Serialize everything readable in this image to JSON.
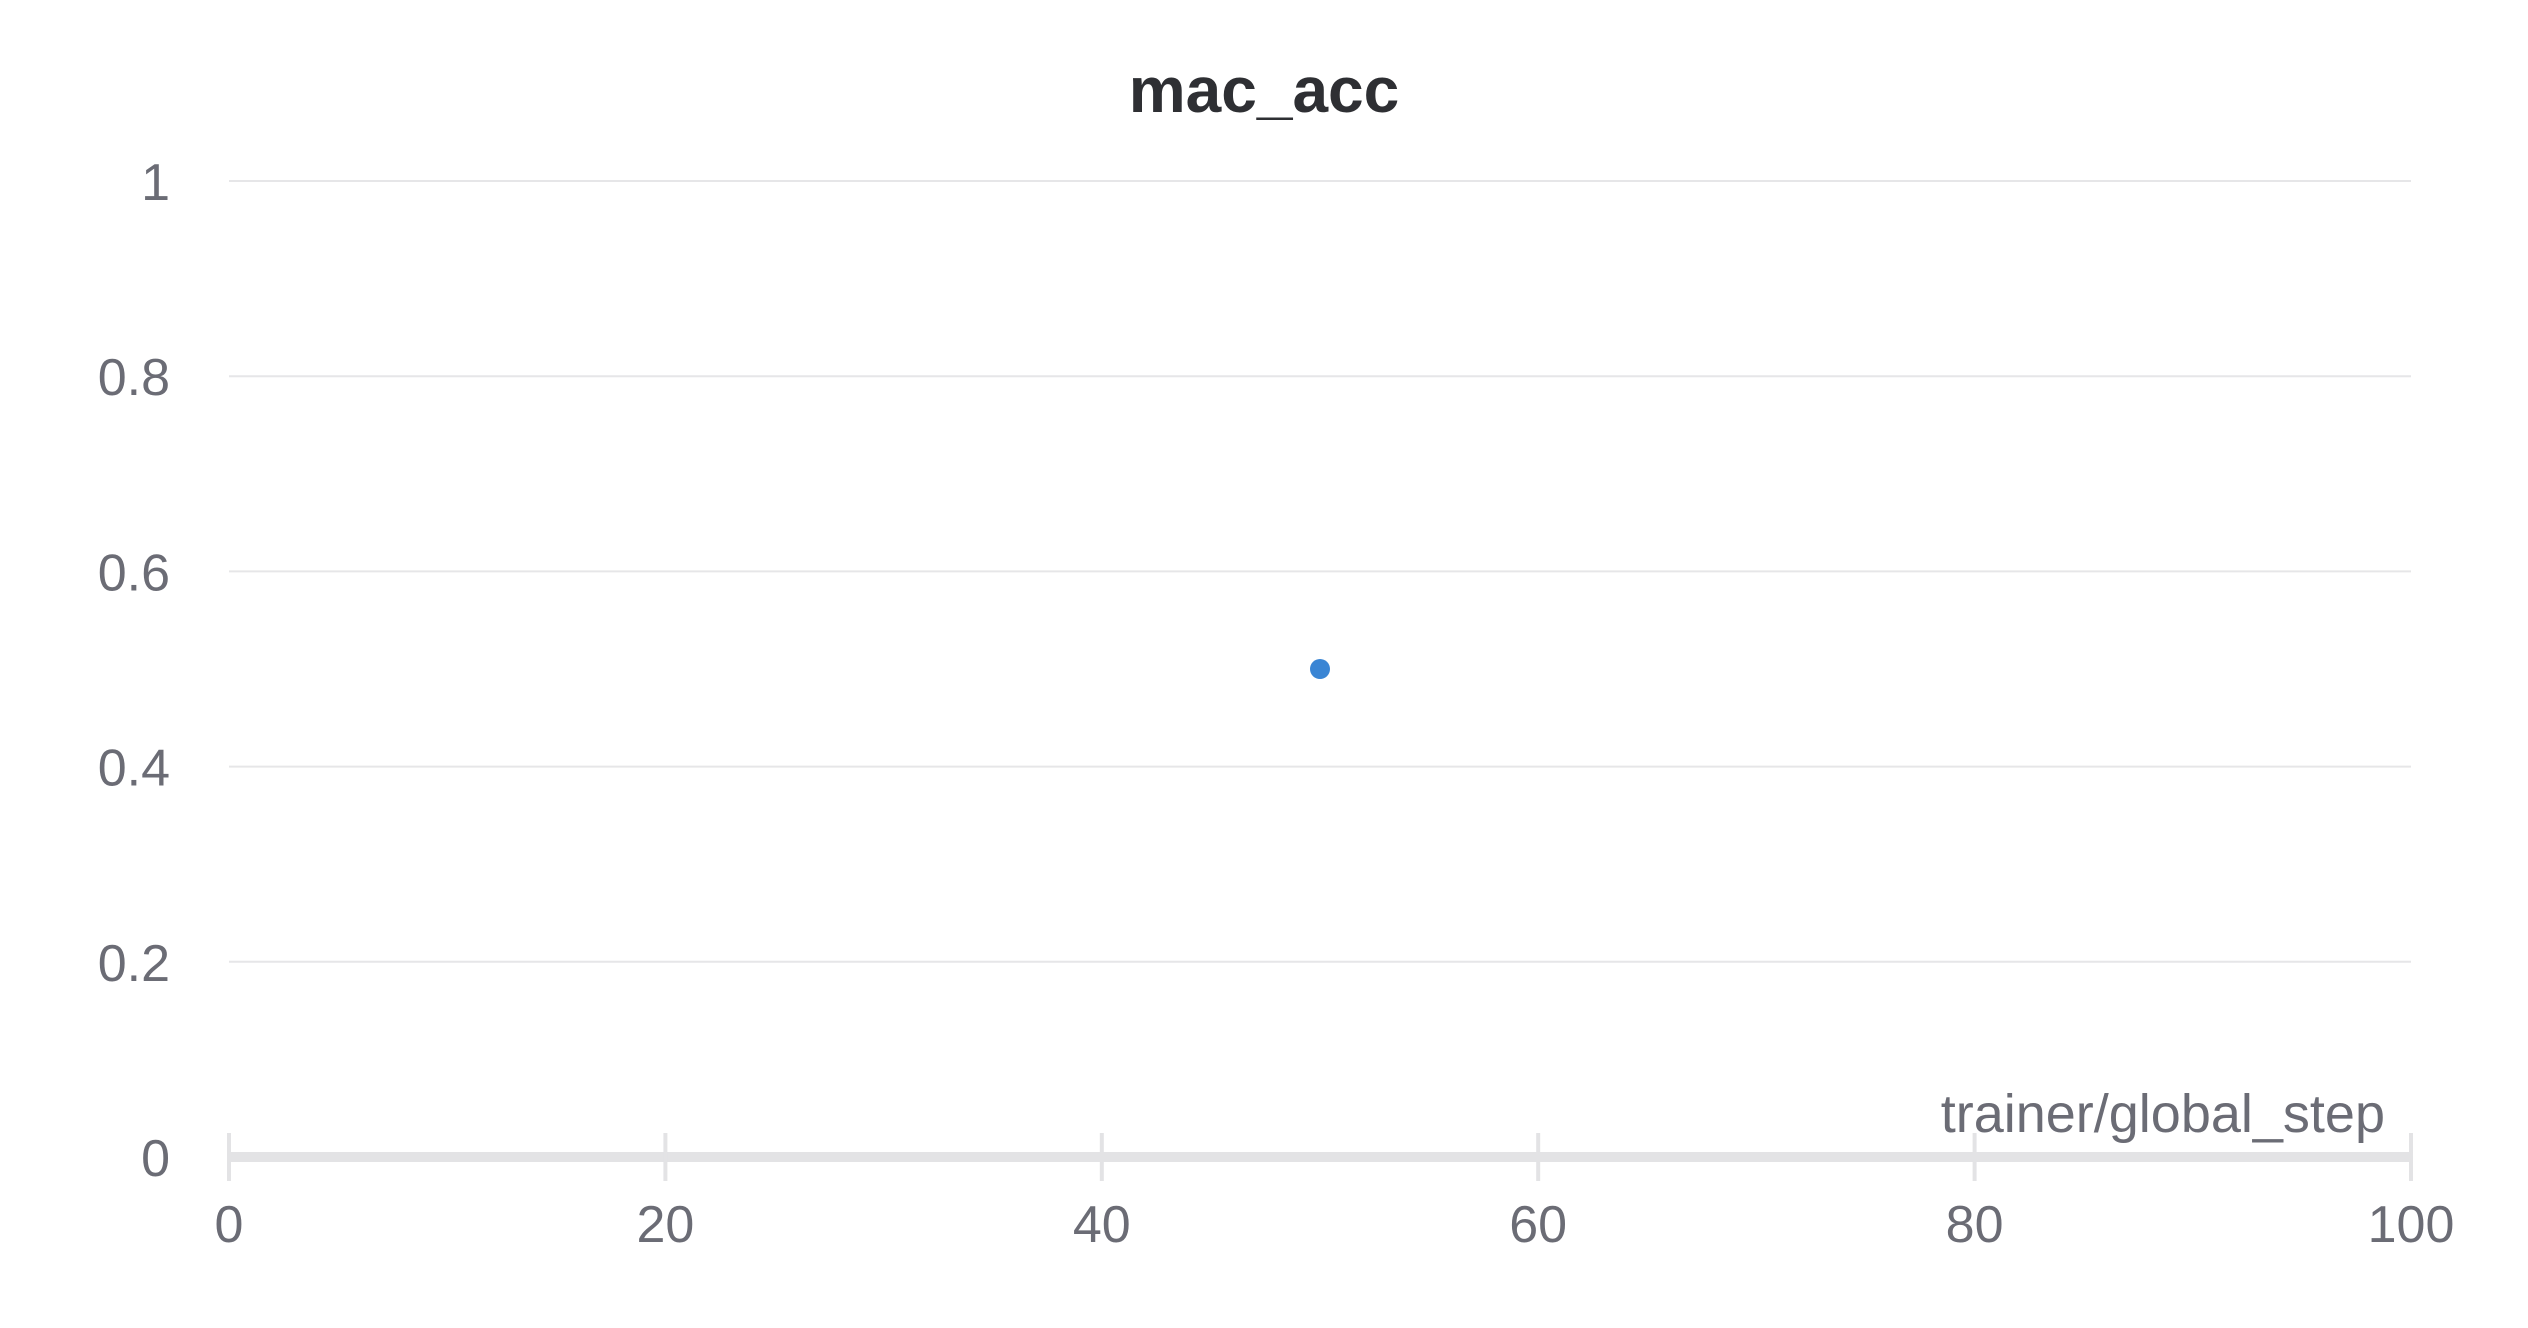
{
  "chart_data": {
    "type": "scatter",
    "title": "mac_acc",
    "xlabel": "trainer/global_step",
    "ylabel": "",
    "xlim": [
      0,
      100
    ],
    "ylim": [
      0,
      1
    ],
    "xticks": [
      "0",
      "20",
      "40",
      "60",
      "80",
      "100"
    ],
    "yticks": [
      "0",
      "0.2",
      "0.4",
      "0.6",
      "0.8",
      "1"
    ],
    "grid": true,
    "series": [
      {
        "color": "#3a85d4",
        "points": [
          {
            "x": 50,
            "y": 0.5
          }
        ]
      }
    ]
  }
}
